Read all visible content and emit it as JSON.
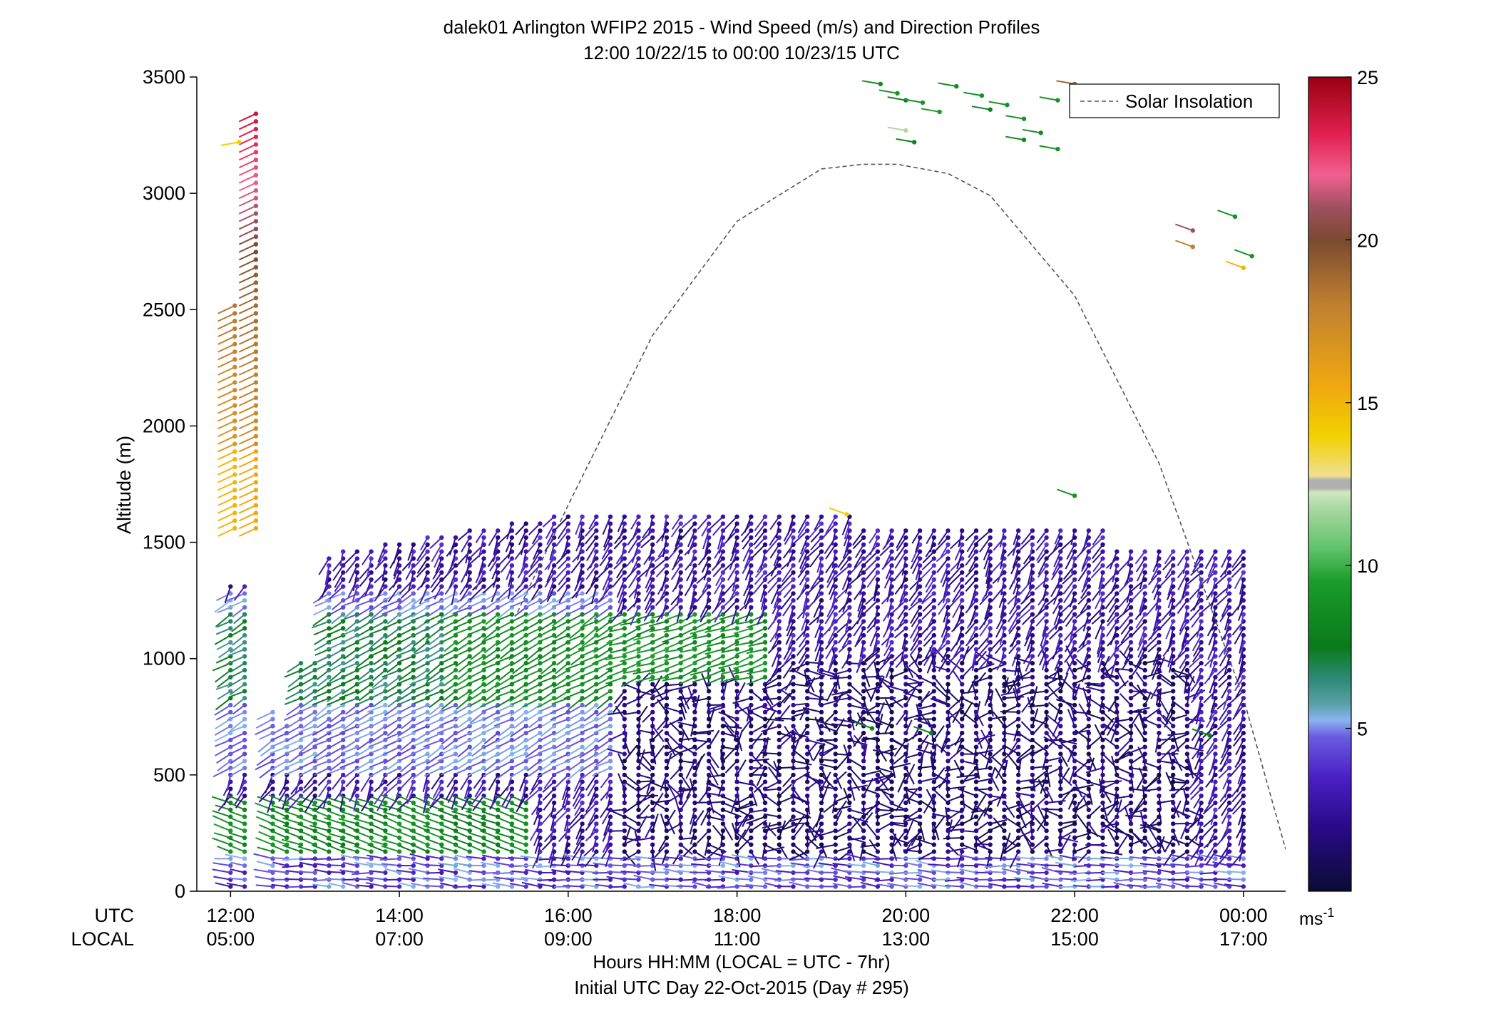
{
  "chart_data": {
    "type": "scatter",
    "title_line1": "dalek01 Arlington WFIP2 2015 - Wind Speed (m/s) and Direction Profiles",
    "title_line2": "12:00 10/22/15 to 00:00 10/23/15  UTC",
    "ylabel": "Altitude (m)",
    "ylim": [
      0,
      3500
    ],
    "y_ticks": [
      "0",
      "500",
      "1000",
      "1500",
      "2000",
      "2500",
      "3000",
      "3500"
    ],
    "x_row_labels": [
      "UTC",
      "LOCAL"
    ],
    "x_ticks_utc": [
      "12:00",
      "14:00",
      "16:00",
      "18:00",
      "20:00",
      "22:00",
      "00:00"
    ],
    "x_ticks_local": [
      "05:00",
      "07:00",
      "09:00",
      "11:00",
      "13:00",
      "15:00",
      "17:00"
    ],
    "xlabel_line1": "Hours HH:MM  (LOCAL = UTC - 7hr)",
    "xlabel_line2": "Initial UTC Day 22-Oct-2015 (Day # 295)",
    "legend_entry": "Solar Insolation",
    "legend_position": "top-right",
    "colorbar_ticks": [
      "5",
      "10",
      "15",
      "20",
      "25"
    ],
    "colorbar_unit": "ms",
    "colorbar_unit_exp": "-1",
    "colorbar_range": [
      0,
      25
    ],
    "x_range_hours": [
      11.6,
      24.5
    ],
    "solar_insolation_peak": {
      "time_utc": "19:55",
      "altitude_scale_m": 3125
    },
    "series": [
      {
        "name": "Solar Insolation",
        "x_hours": [
          15.4,
          16.0,
          17.0,
          18.0,
          19.0,
          19.5,
          19.9,
          20.5,
          21.0,
          22.0,
          23.0,
          24.0,
          24.5
        ],
        "y": [
          1200,
          1660,
          2390,
          2880,
          3105,
          3125,
          3125,
          3085,
          2990,
          2560,
          1840,
          830,
          180
        ]
      }
    ],
    "wind_profiles": {
      "description_fields": [
        "time_hours_utc",
        "altitude_m",
        "speed_ms",
        "direction_deg"
      ],
      "sample_columns": [
        {
          "time": "12:00",
          "low_level_speed": 9,
          "upper_speed": 18,
          "top_m": 3350
        },
        {
          "time": "14:00",
          "low_level_speed": 8,
          "mid_level_speed": 6,
          "top_m": 1550
        },
        {
          "time": "16:00",
          "mid_level_speed": 9,
          "top_m": 1640
        },
        {
          "time": "18:00",
          "mid_level_speed": 8,
          "top_m": 1660
        },
        {
          "time": "20:00",
          "mid_level_speed": 2,
          "top_m": 3470
        },
        {
          "time": "22:00",
          "mid_level_speed": 2,
          "top_m": 1700
        },
        {
          "time": "00:00",
          "mid_level_speed": 3,
          "top_m": 1480
        }
      ]
    }
  }
}
